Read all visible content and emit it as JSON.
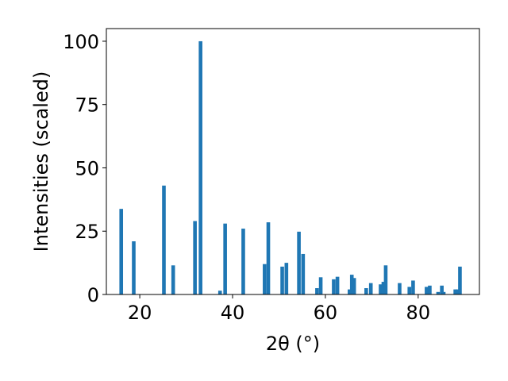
{
  "chart_data": {
    "type": "bar",
    "title": "",
    "xlabel": "2θ (°)",
    "ylabel": "Intensities (scaled)",
    "xlim": [
      12.8,
      93.2
    ],
    "ylim": [
      0,
      105
    ],
    "xticks": [
      20,
      40,
      60,
      80
    ],
    "yticks": [
      0,
      25,
      50,
      75,
      100
    ],
    "bar_color": "#1f77b4",
    "grid": false,
    "legend": "none",
    "series": [
      {
        "x": [
          16.0,
          18.7,
          25.2,
          27.2,
          31.9,
          33.1,
          37.3,
          38.4,
          42.3,
          46.9,
          47.7,
          50.7,
          51.6,
          54.3,
          55.2,
          58.2,
          59.0,
          61.8,
          62.6,
          65.2,
          65.7,
          66.2,
          68.8,
          69.8,
          71.9,
          72.5,
          73.0,
          76.0,
          78.1,
          78.9,
          81.8,
          82.5,
          84.3,
          85.1,
          85.5,
          88.0,
          88.5,
          89.0
        ],
        "values": [
          33.8,
          21.0,
          43.0,
          11.5,
          29.0,
          100.0,
          1.5,
          28.0,
          26.0,
          12.0,
          28.5,
          11.0,
          12.5,
          24.8,
          16.0,
          2.5,
          6.8,
          6.0,
          7.0,
          2.0,
          7.8,
          6.5,
          2.5,
          4.5,
          4.0,
          5.0,
          11.5,
          4.5,
          3.0,
          5.5,
          3.0,
          3.5,
          1.0,
          3.5,
          1.0,
          2.0,
          2.0,
          11.0
        ]
      }
    ]
  }
}
